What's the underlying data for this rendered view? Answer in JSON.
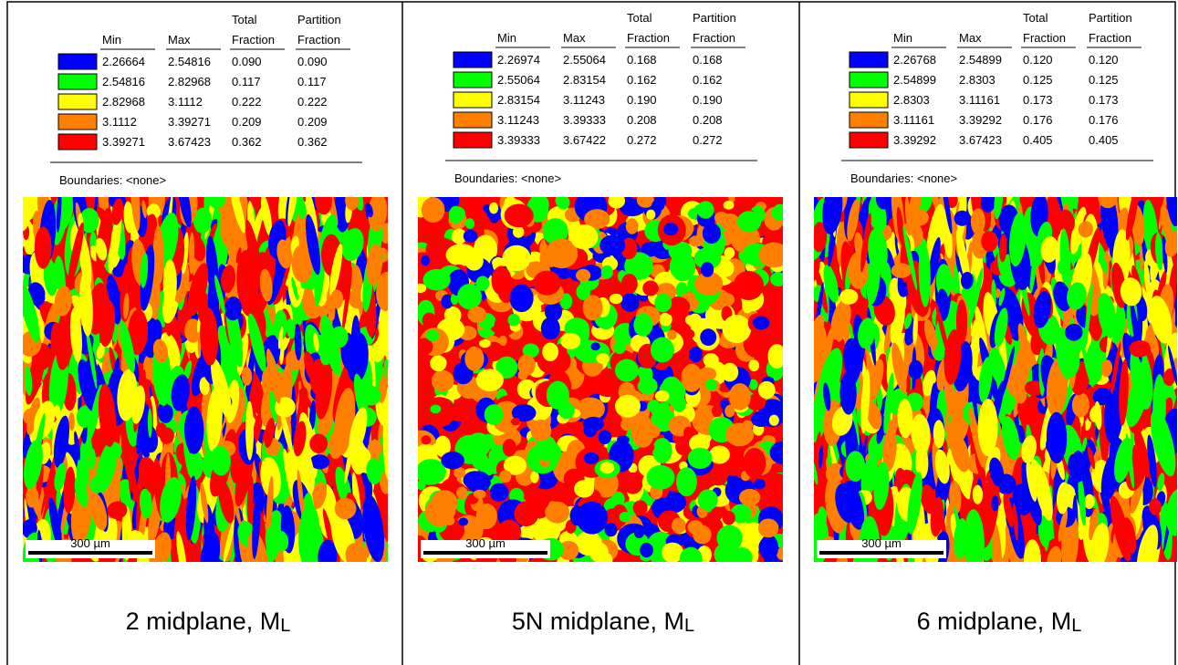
{
  "panels": [
    {
      "header": {
        "min": "Min",
        "max": "Max",
        "total": [
          "Total",
          "Fraction"
        ],
        "partition": [
          "Partition",
          "Fraction"
        ]
      },
      "rows": [
        {
          "color": "#0000ff",
          "min": "2.26664",
          "max": "2.54816",
          "total": "0.090",
          "partition": "0.090"
        },
        {
          "color": "#00ff00",
          "min": "2.54816",
          "max": "2.82968",
          "total": "0.117",
          "partition": "0.117"
        },
        {
          "color": "#ffff00",
          "min": "2.82968",
          "max": "3.1112",
          "total": "0.222",
          "partition": "0.222"
        },
        {
          "color": "#ff8000",
          "min": "3.1112",
          "max": "3.39271",
          "total": "0.209",
          "partition": "0.209"
        },
        {
          "color": "#ff0000",
          "min": "3.39271",
          "max": "3.67423",
          "total": "0.362",
          "partition": "0.362"
        }
      ],
      "boundaries": "Boundaries: <none>",
      "scale_bar": "300 µm",
      "caption": {
        "text": "2 midplane, M",
        "subscript": "L"
      }
    },
    {
      "header": {
        "min": "Min",
        "max": "Max",
        "total": [
          "Total",
          "Fraction"
        ],
        "partition": [
          "Partition",
          "Fraction"
        ]
      },
      "rows": [
        {
          "color": "#0000ff",
          "min": "2.26974",
          "max": "2.55064",
          "total": "0.168",
          "partition": "0.168"
        },
        {
          "color": "#00ff00",
          "min": "2.55064",
          "max": "2.83154",
          "total": "0.162",
          "partition": "0.162"
        },
        {
          "color": "#ffff00",
          "min": "2.83154",
          "max": "3.11243",
          "total": "0.190",
          "partition": "0.190"
        },
        {
          "color": "#ff8000",
          "min": "3.11243",
          "max": "3.39333",
          "total": "0.208",
          "partition": "0.208"
        },
        {
          "color": "#ff0000",
          "min": "3.39333",
          "max": "3.67422",
          "total": "0.272",
          "partition": "0.272"
        }
      ],
      "boundaries": "Boundaries: <none>",
      "scale_bar": "300 µm",
      "caption": {
        "text": "5N midplane, M",
        "subscript": "L"
      }
    },
    {
      "header": {
        "min": "Min",
        "max": "Max",
        "total": [
          "Total",
          "Fraction"
        ],
        "partition": [
          "Partition",
          "Fraction"
        ]
      },
      "rows": [
        {
          "color": "#0000ff",
          "min": "2.26768",
          "max": "2.54899",
          "total": "0.120",
          "partition": "0.120"
        },
        {
          "color": "#00ff00",
          "min": "2.54899",
          "max": "2.8303",
          "total": "0.125",
          "partition": "0.125"
        },
        {
          "color": "#ffff00",
          "min": "2.8303",
          "max": "3.11161",
          "total": "0.173",
          "partition": "0.173"
        },
        {
          "color": "#ff8000",
          "min": "3.11161",
          "max": "3.39292",
          "total": "0.176",
          "partition": "0.176"
        },
        {
          "color": "#ff0000",
          "min": "3.39292",
          "max": "3.67423",
          "total": "0.405",
          "partition": "0.405"
        }
      ],
      "boundaries": "Boundaries: <none>",
      "scale_bar": "300 µm",
      "caption": {
        "text": "6 midplane, M",
        "subscript": "L"
      }
    }
  ]
}
